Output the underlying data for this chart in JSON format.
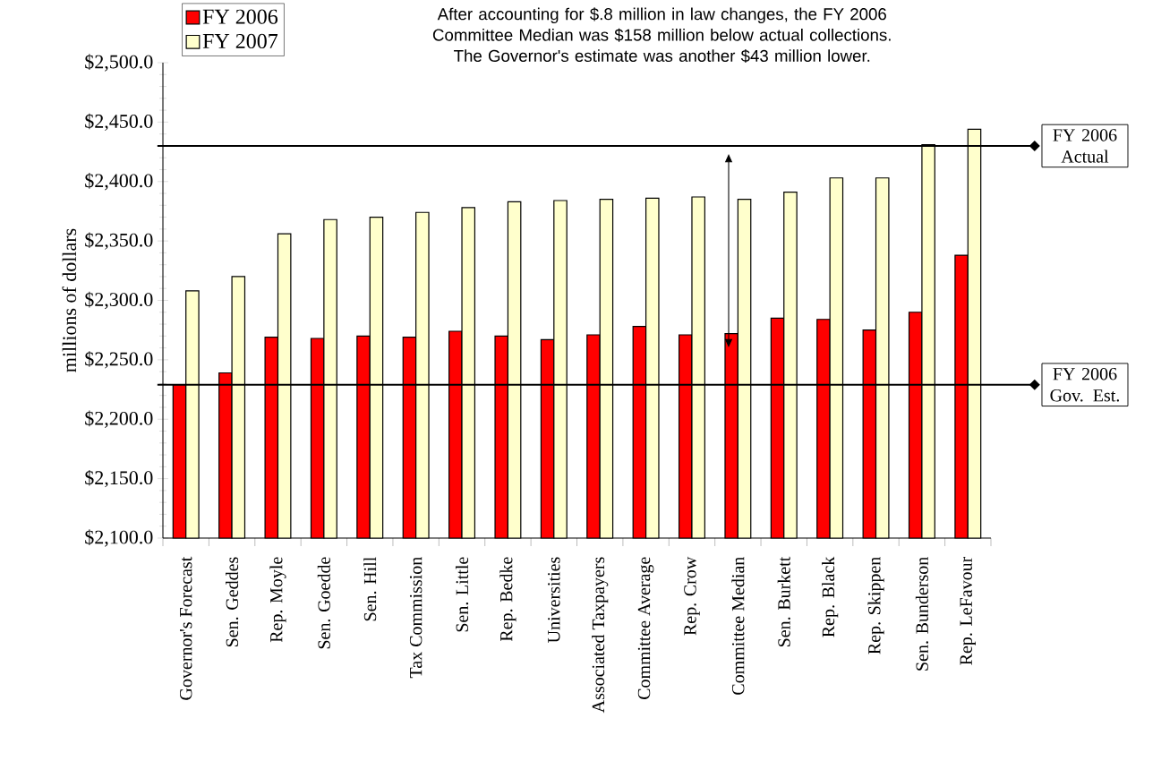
{
  "chart_data": {
    "type": "bar",
    "categories": [
      "Governor's Forecast",
      "Sen. Geddes",
      "Rep. Moyle",
      "Sen. Goedde",
      "Sen. Hill",
      "Tax Commission",
      "Sen. Little",
      "Rep. Bedke",
      "Universities",
      "Associated Taxpayers",
      "Committee Average",
      "Rep. Crow",
      "Committee Median",
      "Sen. Burkett",
      "Rep. Black",
      "Rep. Skippen",
      "Sen. Bunderson",
      "Rep. LeFavour"
    ],
    "series": [
      {
        "name": "FY 2006",
        "color": "#ff0000",
        "values": [
          2229,
          2239,
          2269,
          2268,
          2270,
          2269,
          2274,
          2270,
          2267,
          2271,
          2278,
          2271,
          2272,
          2285,
          2284,
          2275,
          2290,
          2338
        ]
      },
      {
        "name": "FY 2007",
        "color": "#ffffcc",
        "values": [
          2308,
          2320,
          2356,
          2368,
          2370,
          2374,
          2378,
          2383,
          2384,
          2385,
          2386,
          2387,
          2385,
          2391,
          2403,
          2403,
          2431,
          2444
        ]
      }
    ],
    "ylabel": "millions of dollars",
    "ylim": [
      2100,
      2500
    ],
    "yticks": [
      {
        "value": 2100,
        "label": "$2,100.0"
      },
      {
        "value": 2150,
        "label": "$2,150.0"
      },
      {
        "value": 2200,
        "label": "$2,200.0"
      },
      {
        "value": 2250,
        "label": "$2,250.0"
      },
      {
        "value": 2300,
        "label": "$2,300.0"
      },
      {
        "value": 2350,
        "label": "$2,350.0"
      },
      {
        "value": 2400,
        "label": "$2,400.0"
      },
      {
        "value": 2450,
        "label": "$2,450.0"
      },
      {
        "value": 2500,
        "label": "$2,500.0"
      }
    ],
    "ref_lines": [
      {
        "axis": "y",
        "value": 2430,
        "label": "FY 2006 Actual",
        "color": "#000000"
      },
      {
        "axis": "y",
        "value": 2229,
        "label": "FY 2006 Gov. Est.",
        "color": "#000000"
      }
    ],
    "annotations": [
      "After accounting for $.8 million in law changes, the FY 2006 Committee Median was $158 million below actual collections. The Governor's estimate was another $43 million lower."
    ],
    "legend": "top left"
  }
}
